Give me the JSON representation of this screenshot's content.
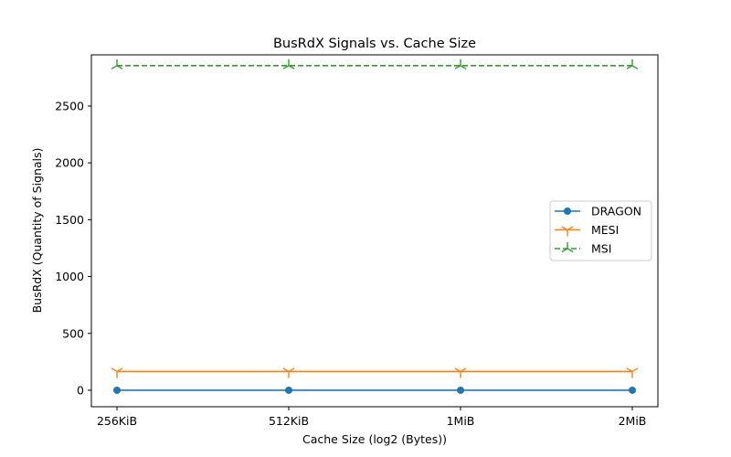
{
  "chart_data": {
    "type": "line",
    "title": "BusRdX Signals vs. Cache Size",
    "xlabel": "Cache Size (log2 (Bytes))",
    "ylabel": "BusRdX (Quantity of Signals)",
    "categories": [
      "256KiB",
      "512KiB",
      "1MiB",
      "2MiB"
    ],
    "ylim": [
      -145,
      2950
    ],
    "yticks": [
      0,
      500,
      1000,
      1500,
      2000,
      2500
    ],
    "grid": false,
    "legend_position": "center-right",
    "series": [
      {
        "name": "DRAGON",
        "values": [
          0,
          0,
          0,
          0
        ],
        "color": "#1f77b4",
        "marker": "circle",
        "linestyle": "solid"
      },
      {
        "name": "MESI",
        "values": [
          165,
          165,
          165,
          165
        ],
        "color": "#ff7f0e",
        "marker": "tri-down",
        "linestyle": "solid"
      },
      {
        "name": "MSI",
        "values": [
          2855,
          2855,
          2855,
          2855
        ],
        "color": "#2ca02c",
        "marker": "tri-up",
        "linestyle": "dashed"
      }
    ]
  }
}
